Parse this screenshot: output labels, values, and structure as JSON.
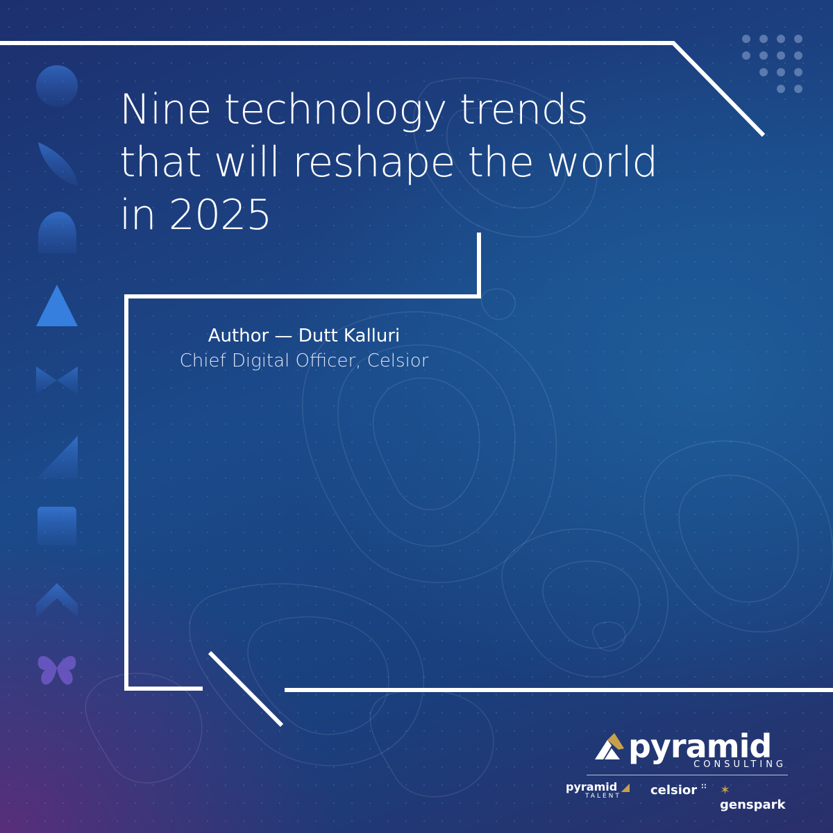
{
  "title": "Nine technology trends that will reshape the world in 2025",
  "author": {
    "line": "Author — Dutt Kalluri",
    "role": "Chief Digital Officer, Celsior"
  },
  "logo": {
    "name": "pyramid",
    "tagline": "CONSULTING",
    "brands": [
      {
        "name": "pyramid",
        "sub": "TALENT"
      },
      {
        "name": "celsior"
      },
      {
        "name": "genspark"
      }
    ]
  },
  "icons": [
    "circle-icon",
    "leaf-icon",
    "blob-icon",
    "triangle-icon",
    "bowtie-icon",
    "ramp-icon",
    "square-icon",
    "chevron-icon",
    "flower-icon"
  ],
  "colors": {
    "background_top": "#1d2f6e",
    "background_mid": "#1b4a8a",
    "accent_purple": "#6e2878",
    "frame_line": "#ffffff",
    "logo_gold": "#c9a04a"
  }
}
